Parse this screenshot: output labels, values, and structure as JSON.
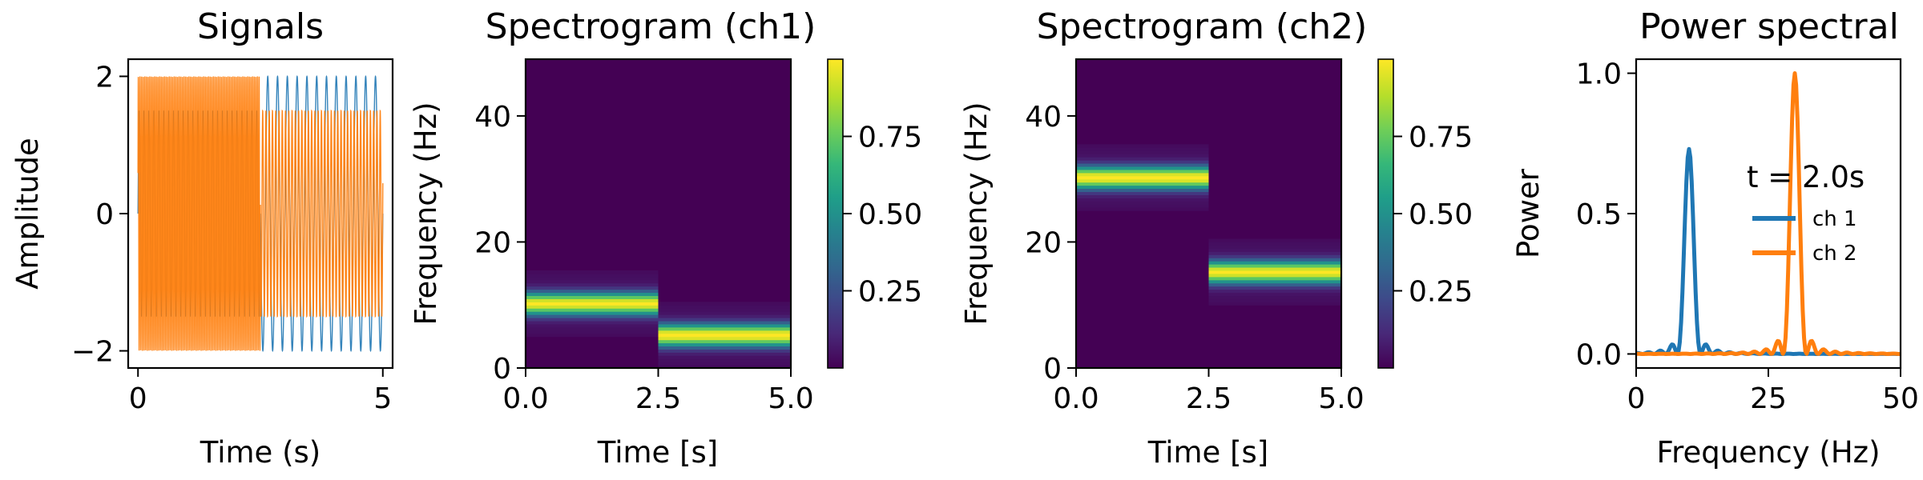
{
  "colors": {
    "ch1": "#1f77b4",
    "ch2": "#ff7f0e",
    "viridis": [
      "#440154",
      "#482878",
      "#3e4989",
      "#31688e",
      "#26828e",
      "#1f9e89",
      "#35b779",
      "#6ece58",
      "#b5de2b",
      "#fde725"
    ]
  },
  "chart_data": [
    {
      "type": "line",
      "title": "Signals",
      "xlabel": "Time (s)",
      "ylabel": "Amplitude",
      "xlim": [
        -0.2,
        5.2
      ],
      "ylim": [
        -2.25,
        2.25
      ],
      "xticks": [
        0,
        5
      ],
      "xtick_labels": [
        "0",
        "5"
      ],
      "yticks": [
        -2,
        0,
        2
      ],
      "ytick_labels": [
        "−2",
        "0",
        "2"
      ],
      "grid": false,
      "series": [
        {
          "color": "ch1",
          "frequency_hz": [
            10,
            5
          ],
          "amplitude": [
            1.5,
            2.0
          ],
          "switch_time": 2.5,
          "t_range": [
            0,
            5
          ]
        },
        {
          "color": "ch2",
          "frequency_hz": [
            30,
            15
          ],
          "amplitude": [
            2.0,
            1.5
          ],
          "switch_time": 2.5,
          "t_range": [
            0,
            5
          ]
        }
      ]
    },
    {
      "type": "heatmap",
      "title": "Spectrogram (ch1)",
      "xlabel": "Time [s]",
      "ylabel": "Frequency (Hz)",
      "xlim": [
        0,
        5
      ],
      "ylim": [
        0,
        49
      ],
      "xticks": [
        0,
        2.5,
        5
      ],
      "xtick_labels": [
        "0.0",
        "2.5",
        "5.0"
      ],
      "yticks": [
        0,
        20,
        40
      ],
      "ytick_labels": [
        "0",
        "20",
        "40"
      ],
      "colorbar_ticks": [
        0.25,
        0.5,
        0.75
      ],
      "colorbar_labels": [
        "0.25",
        "0.50",
        "0.75"
      ],
      "colorbar_range": [
        0,
        1
      ],
      "segments": [
        {
          "t_range": [
            0,
            2.5
          ],
          "peak_freq_hz": 10,
          "peak_value": 0.95
        },
        {
          "t_range": [
            2.5,
            5
          ],
          "peak_freq_hz": 5,
          "peak_value": 0.97
        }
      ]
    },
    {
      "type": "heatmap",
      "title": "Spectrogram (ch2)",
      "xlabel": "Time [s]",
      "ylabel": "Frequency (Hz)",
      "xlim": [
        0,
        5
      ],
      "ylim": [
        0,
        49
      ],
      "xticks": [
        0,
        2.5,
        5
      ],
      "xtick_labels": [
        "0.0",
        "2.5",
        "5.0"
      ],
      "yticks": [
        0,
        20,
        40
      ],
      "ytick_labels": [
        "0",
        "20",
        "40"
      ],
      "colorbar_ticks": [
        0.25,
        0.5,
        0.75
      ],
      "colorbar_labels": [
        "0.25",
        "0.50",
        "0.75"
      ],
      "colorbar_range": [
        0,
        1
      ],
      "segments": [
        {
          "t_range": [
            0,
            2.5
          ],
          "peak_freq_hz": 30,
          "peak_value": 0.97
        },
        {
          "t_range": [
            2.5,
            5
          ],
          "peak_freq_hz": 15,
          "peak_value": 0.95
        }
      ]
    },
    {
      "type": "line",
      "title": "Power spectral",
      "xlabel": "Frequency (Hz)",
      "ylabel": "Power",
      "xlim": [
        0,
        50
      ],
      "ylim": [
        -0.05,
        1.05
      ],
      "xticks": [
        0,
        25,
        50
      ],
      "xtick_labels": [
        "0",
        "25",
        "50"
      ],
      "yticks": [
        0,
        0.5,
        1.0
      ],
      "ytick_labels": [
        "0.0",
        "0.5",
        "1.0"
      ],
      "grid": false,
      "legend": {
        "title": "t = 2.0s",
        "placement": "upper-right"
      },
      "series": [
        {
          "name": "ch 1",
          "color": "ch1",
          "peak_freq_hz": 10,
          "peak_power": 0.73
        },
        {
          "name": "ch 2",
          "color": "ch2",
          "peak_freq_hz": 30,
          "peak_power": 1.0
        }
      ]
    }
  ]
}
